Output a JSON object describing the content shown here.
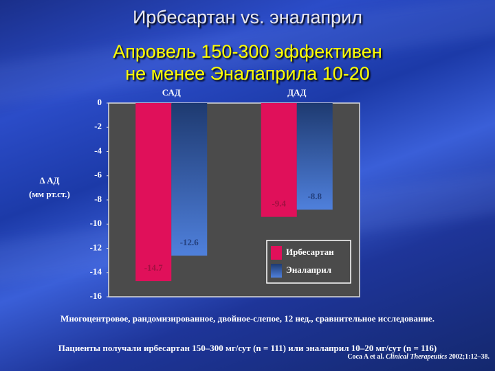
{
  "chart_data": {
    "type": "bar",
    "title": "Ирбесартан vs. эналаприл",
    "subtitle": [
      "Апровель 150-300 эффективен",
      "не менее Эналаприла 10-20"
    ],
    "y_label": [
      "Δ АД",
      "(мм рт.ст.)"
    ],
    "categories": [
      "САД",
      "ДАД"
    ],
    "series": [
      {
        "name": "Ирбесартан",
        "color": "#e0105a",
        "label_color": "#a01040",
        "values": [
          -14.7,
          -9.4
        ]
      },
      {
        "name": "Эналаприл",
        "color": "#4f80dc",
        "label_color": "#24407e",
        "values": [
          -12.6,
          -8.8
        ]
      }
    ],
    "ylim": [
      -16,
      0
    ],
    "yticks": [
      0,
      -2,
      -4,
      -6,
      -8,
      -10,
      -12,
      -14,
      -16
    ],
    "legend": "lower right",
    "notes": [
      "Многоцентровое, рандомизированное, двойное-слепое, 12 нед., сравнительное исследование.",
      "Пациенты получали ирбесартан 150–300 мг/сут (n = 111) или эналаприл 10–20 мг/сут (n = 116)"
    ],
    "source": {
      "authors": "Coca A et al.",
      "journal": "Clinical Therapeutics",
      "ref": "2002;1:12–38."
    }
  }
}
